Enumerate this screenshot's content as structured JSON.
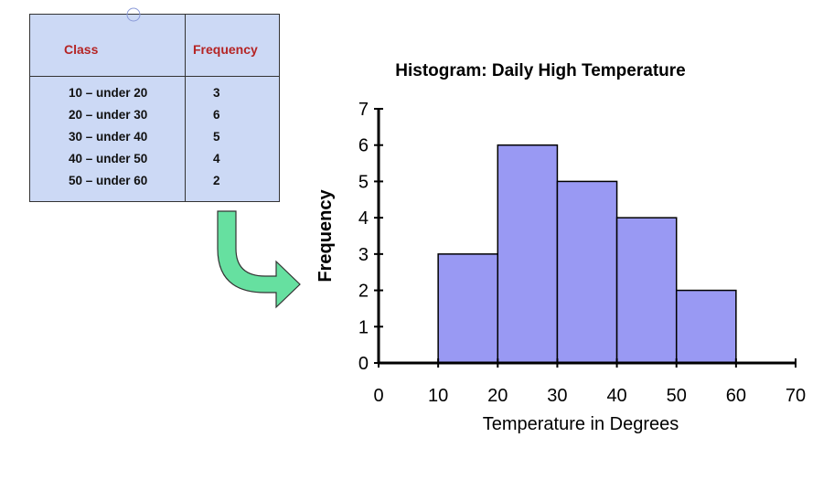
{
  "table": {
    "headers": [
      "Class",
      "Frequency"
    ],
    "rows": [
      [
        "10 – under 20",
        "3"
      ],
      [
        "20 – under 30",
        "6"
      ],
      [
        "30 – under 40",
        "5"
      ],
      [
        "40 – under 50",
        "4"
      ],
      [
        "50 – under 60",
        "2"
      ]
    ]
  },
  "chart_data": {
    "type": "bar",
    "title": "Histogram: Daily High Temperature",
    "xlabel": "Temperature in Degrees",
    "ylabel": "Frequency",
    "bins": [
      [
        10,
        20
      ],
      [
        20,
        30
      ],
      [
        30,
        40
      ],
      [
        40,
        50
      ],
      [
        50,
        60
      ]
    ],
    "values": [
      3,
      6,
      5,
      4,
      2
    ],
    "xlim": [
      0,
      70
    ],
    "ylim": [
      0,
      7
    ],
    "xticks": [
      0,
      10,
      20,
      30,
      40,
      50,
      60,
      70
    ],
    "yticks": [
      0,
      1,
      2,
      3,
      4,
      5,
      6,
      7
    ],
    "grid": false,
    "bar_color": "#9999f3"
  },
  "colors": {
    "table_bg": "#ccd9f5",
    "header_text": "#b52424",
    "arrow_fill": "#66e0a0"
  }
}
